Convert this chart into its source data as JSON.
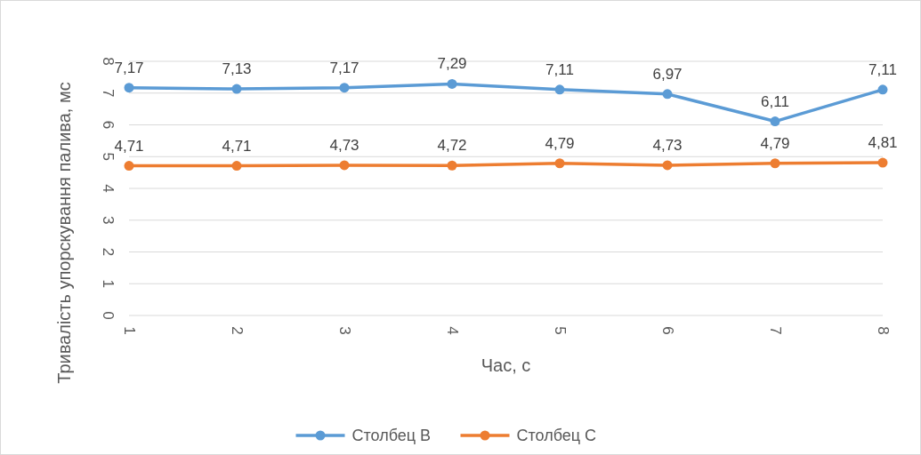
{
  "chart_data": {
    "type": "line",
    "xlabel": "Час, с",
    "ylabel": "Тривалість упорскування палива, мс",
    "categories": [
      "1",
      "2",
      "3",
      "4",
      "5",
      "6",
      "7",
      "8"
    ],
    "series": [
      {
        "name": "Столбец B",
        "color": "#5b9bd5",
        "values": [
          7.17,
          7.13,
          7.17,
          7.29,
          7.11,
          6.97,
          6.11,
          7.11
        ],
        "value_labels": [
          "7,17",
          "7,13",
          "7,17",
          "7,29",
          "7,11",
          "6,97",
          "6,11",
          "7,11"
        ]
      },
      {
        "name": "Столбец C",
        "color": "#ed7d31",
        "values": [
          4.71,
          4.71,
          4.73,
          4.72,
          4.79,
          4.73,
          4.79,
          4.81
        ],
        "value_labels": [
          "4,71",
          "4,71",
          "4,73",
          "4,72",
          "4,79",
          "4,73",
          "4,79",
          "4,81"
        ]
      }
    ],
    "ylim": [
      0,
      8
    ],
    "yticks": [
      0,
      1,
      2,
      3,
      4,
      5,
      6,
      7,
      8
    ],
    "grid": "y",
    "legend": "bottom",
    "marker": "circle",
    "line_style": "solid"
  }
}
